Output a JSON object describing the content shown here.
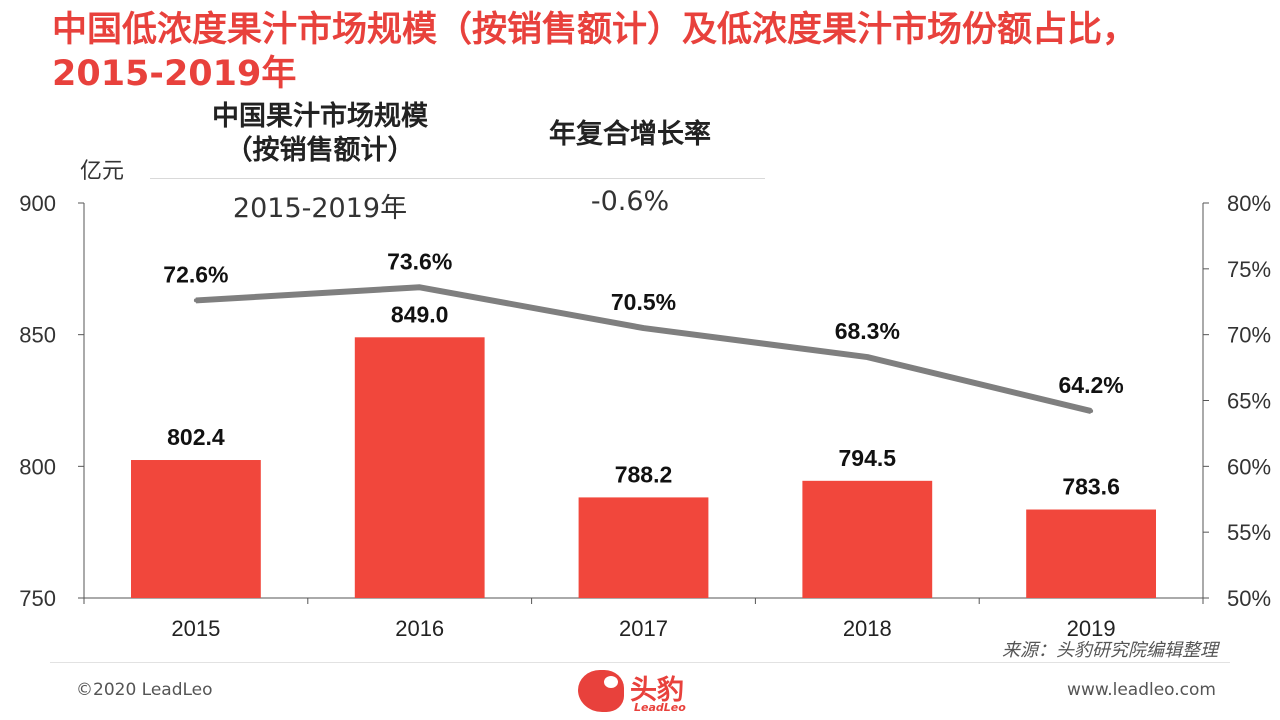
{
  "title": "中国低浓度果汁市场规模（按销售额计）及低浓度果汁市场份额占比，2015-2019年",
  "cagr": {
    "header_size": "中国果汁市场规模\n（按销售额计）",
    "header_rate": "年复合增长率",
    "period": "2015-2019年",
    "rate": "-0.6%"
  },
  "source": "来源：头豹研究院编辑整理",
  "footer": {
    "copyright": "©2020 LeadLeo",
    "website": "www.leadleo.com",
    "logo_cn": "头豹",
    "logo_en": "LeadLeo"
  },
  "colors": {
    "title": "#e8413c",
    "bar": "#f1473c",
    "line": "#7f7f7f"
  },
  "chart_data": {
    "type": "bar",
    "categories": [
      "2015",
      "2016",
      "2017",
      "2018",
      "2019"
    ],
    "series": [
      {
        "type": "bar",
        "axis": "left",
        "values": [
          802.4,
          849.0,
          788.2,
          794.5,
          783.6
        ],
        "labels": [
          "802.4",
          "849.0",
          "788.2",
          "794.5",
          "783.6"
        ]
      },
      {
        "type": "line",
        "axis": "right",
        "values": [
          72.6,
          73.6,
          70.5,
          68.3,
          64.2
        ],
        "labels": [
          "72.6%",
          "73.6%",
          "70.5%",
          "68.3%",
          "64.2%"
        ]
      }
    ],
    "ylabel": "亿元",
    "ylim": [
      750,
      900
    ],
    "yticks": [
      "900",
      "850",
      "800",
      "750"
    ],
    "y2lim": [
      50,
      80
    ],
    "y2ticks": [
      "80%",
      "75%",
      "70%",
      "65%",
      "60%",
      "55%",
      "50%"
    ],
    "grid": false
  }
}
